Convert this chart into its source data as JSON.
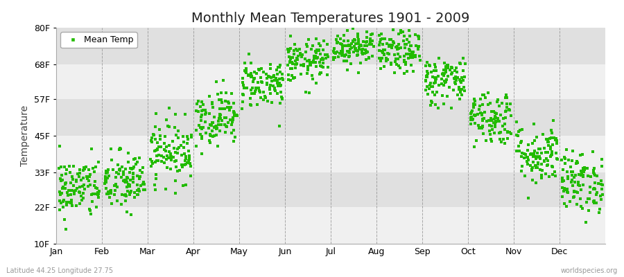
{
  "title": "Monthly Mean Temperatures 1901 - 2009",
  "ylabel": "Temperature",
  "xlabel_months": [
    "Jan",
    "Feb",
    "Mar",
    "Apr",
    "May",
    "Jun",
    "Jul",
    "Aug",
    "Sep",
    "Oct",
    "Nov",
    "Dec"
  ],
  "ytick_labels": [
    "10F",
    "22F",
    "33F",
    "45F",
    "57F",
    "68F",
    "80F"
  ],
  "ytick_values": [
    10,
    22,
    33,
    45,
    57,
    68,
    80
  ],
  "ylim": [
    10,
    80
  ],
  "xlim": [
    0,
    12
  ],
  "dot_color": "#22bb00",
  "background_color": "#ffffff",
  "plot_bg_light": "#f0f0f0",
  "plot_bg_dark": "#e0e0e0",
  "grid_color": "#888888",
  "legend_label": "Mean Temp",
  "subtitle_left": "Latitude 44.25 Longitude 27.75",
  "subtitle_right": "worldspecies.org",
  "n_years": 109,
  "monthly_means_F": [
    28,
    30,
    40,
    51,
    62,
    69,
    74,
    72,
    63,
    51,
    39,
    30
  ],
  "monthly_stds_F": [
    5.0,
    5.0,
    5.0,
    4.5,
    4.0,
    3.5,
    3.0,
    3.5,
    4.0,
    4.5,
    5.0,
    5.0
  ],
  "title_fontsize": 14,
  "axis_fontsize": 9,
  "label_fontsize": 10,
  "marker_size": 3.5
}
